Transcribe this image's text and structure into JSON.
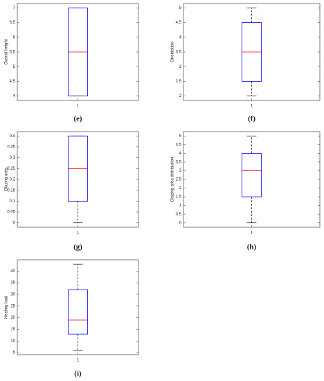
{
  "chart_data": [
    {
      "type": "box",
      "ylabel": "Overall height",
      "caption": "(e)",
      "categories": [
        "1"
      ],
      "boxes": [
        {
          "min": 4,
          "q1": 4,
          "median": 5.5,
          "q3": 7,
          "max": 7
        }
      ],
      "box_color": "#0000ff",
      "median_color": "#ff0000",
      "whisker_color": "#000000",
      "ylim": [
        3.85,
        7.15
      ],
      "yticks": [
        4,
        4.5,
        5,
        5.5,
        6,
        6.5,
        7
      ]
    },
    {
      "type": "box",
      "ylabel": "Orientation",
      "caption": "(f)",
      "categories": [
        "1"
      ],
      "boxes": [
        {
          "min": 2,
          "q1": 2.5,
          "median": 3.5,
          "q3": 4.5,
          "max": 5
        }
      ],
      "box_color": "#0000ff",
      "median_color": "#ff0000",
      "whisker_color": "#000000",
      "ylim": [
        1.85,
        5.15
      ],
      "yticks": [
        2,
        2.5,
        3,
        3.5,
        4,
        4.5,
        5
      ]
    },
    {
      "type": "box",
      "ylabel": "Glazing area",
      "caption": "(g)",
      "categories": [
        "1"
      ],
      "boxes": [
        {
          "min": 0,
          "q1": 0.1,
          "median": 0.25,
          "q3": 0.4,
          "max": 0.4
        }
      ],
      "box_color": "#0000ff",
      "median_color": "#ff0000",
      "whisker_color": "#000000",
      "ylim": [
        -0.02,
        0.42
      ],
      "yticks": [
        0,
        0.05,
        0.1,
        0.15,
        0.2,
        0.25,
        0.3,
        0.35,
        0.4
      ]
    },
    {
      "type": "box",
      "ylabel": "Glazing area distribution",
      "caption": "(h)",
      "categories": [
        "1"
      ],
      "boxes": [
        {
          "min": 0,
          "q1": 1.5,
          "median": 3,
          "q3": 4,
          "max": 5
        }
      ],
      "box_color": "#0000ff",
      "median_color": "#ff0000",
      "whisker_color": "#000000",
      "ylim": [
        -0.25,
        5.25
      ],
      "yticks": [
        0,
        0.5,
        1,
        1.5,
        2,
        2.5,
        3,
        3.5,
        4,
        4.5,
        5
      ]
    },
    {
      "type": "box",
      "ylabel": "Heating load",
      "caption": "(i)",
      "categories": [
        "1"
      ],
      "boxes": [
        {
          "min": 6,
          "q1": 13,
          "median": 19,
          "q3": 32,
          "max": 43
        }
      ],
      "box_color": "#0000ff",
      "median_color": "#ff0000",
      "whisker_color": "#000000",
      "ylim": [
        4.15,
        44.85
      ],
      "yticks": [
        5,
        10,
        15,
        20,
        25,
        30,
        35,
        40
      ]
    }
  ]
}
